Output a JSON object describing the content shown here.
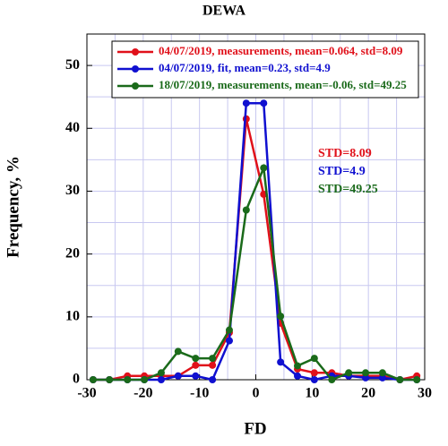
{
  "chart_data": {
    "type": "line",
    "title": "DEWA",
    "x_label": "FD",
    "y_label": "Frequency, %",
    "x": [
      -28.9,
      -26,
      -22.8,
      -19.8,
      -16.8,
      -13.8,
      -10.7,
      -7.7,
      -4.7,
      -1.7,
      1.4,
      4.4,
      7.4,
      10.4,
      13.5,
      16.5,
      19.5,
      22.5,
      25.6,
      28.6
    ],
    "series": [
      {
        "name": "04/07/2019, measurements, mean=0.064, std=8.09",
        "color": "#e0101a",
        "values": [
          0,
          0,
          0.6,
          0.6,
          0.6,
          0.6,
          2.3,
          2.3,
          7.5,
          41.5,
          29.5,
          9,
          1.7,
          1.1,
          1.1,
          0.6,
          0.6,
          0.6,
          0,
          0.6
        ]
      },
      {
        "name": "04/07/2019, fit, mean=0.23, std=4.9",
        "color": "#1010d0",
        "values": [
          0,
          0,
          0,
          0,
          0,
          0.6,
          0.6,
          0,
          6.2,
          44,
          44,
          2.8,
          0.6,
          0,
          0.6,
          0.6,
          0.3,
          0.3,
          0,
          0
        ]
      },
      {
        "name": "18/07/2019, measurements, mean=-0.06, std=49.25",
        "color": "#1a6a1a",
        "values": [
          0,
          0,
          0,
          0,
          1.1,
          4.5,
          3.4,
          3.4,
          7.9,
          27,
          33.7,
          10.1,
          2.2,
          3.4,
          0,
          1.1,
          1.1,
          1.1,
          0,
          0
        ]
      }
    ],
    "annotations": [
      {
        "text": "STD=8.09",
        "color": "#e0101a"
      },
      {
        "text": "STD=4.9",
        "color": "#1010d0"
      },
      {
        "text": "STD=49.25",
        "color": "#1a6a1a"
      }
    ],
    "xlim": [
      -30,
      30
    ],
    "xticks": [
      -30,
      -20,
      -10,
      0,
      10,
      20,
      30
    ],
    "ylim": [
      0,
      55
    ],
    "yticks": [
      0,
      10,
      20,
      30,
      40,
      50
    ],
    "x_minor_grid": [
      -25,
      -15,
      -5,
      5,
      15,
      25
    ],
    "y_minor_grid": [
      5,
      15,
      25,
      35,
      45,
      55
    ],
    "grid": true,
    "legend": "top-right"
  }
}
